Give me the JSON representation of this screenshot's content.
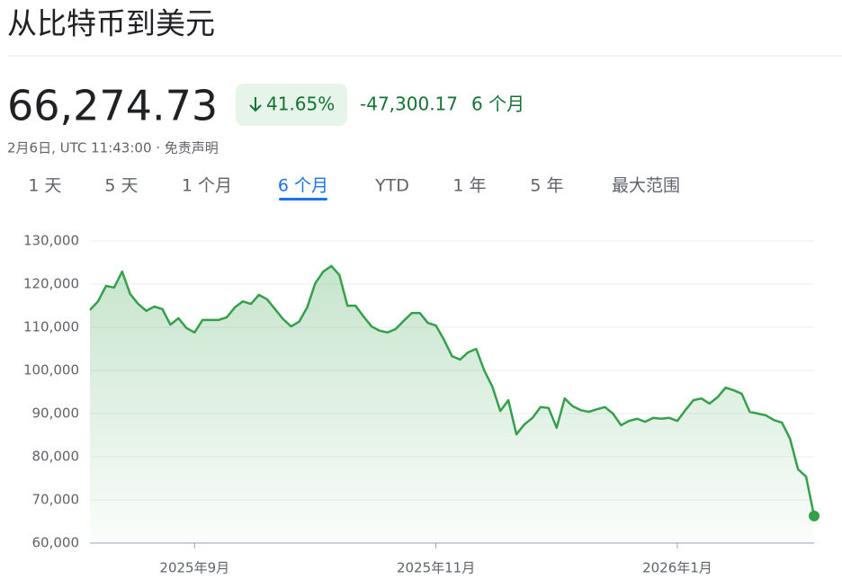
{
  "header": {
    "title": "从比特币到美元",
    "price": "66,274.73",
    "change_pct": "41.65%",
    "change_abs": "-47,300.17",
    "change_period": "6 个月",
    "timestamp": "2月6日, UTC 11:43:00 · 免责声明"
  },
  "tabs": [
    "1 天",
    "5 天",
    "1 个月",
    "6 个月",
    "YTD",
    "1 年",
    "5 年",
    "最大范围"
  ],
  "active_tab": 3,
  "chart_data": {
    "type": "line",
    "categories": [
      null,
      null,
      null,
      null,
      null,
      null,
      null,
      null,
      null,
      null,
      null,
      null,
      null,
      "2025年9月",
      null,
      null,
      null,
      null,
      null,
      null,
      null,
      null,
      null,
      null,
      null,
      null,
      null,
      null,
      null,
      null,
      null,
      null,
      null,
      null,
      null,
      null,
      null,
      null,
      null,
      null,
      null,
      null,
      null,
      "2025年11月",
      null,
      null,
      null,
      null,
      null,
      null,
      null,
      null,
      null,
      null,
      null,
      null,
      null,
      null,
      null,
      null,
      null,
      null,
      null,
      null,
      null,
      null,
      null,
      null,
      null,
      null,
      null,
      null,
      null,
      "2026年1月",
      null,
      null,
      null,
      null,
      null,
      null,
      null,
      null,
      null,
      null,
      null,
      null,
      null,
      null,
      null,
      null,
      null
    ],
    "series": [
      {
        "color": "#34a04a",
        "values": [
          114000,
          116000,
          119600,
          119200,
          122900,
          117700,
          115400,
          113800,
          114800,
          114200,
          110600,
          112100,
          109800,
          108800,
          111700,
          111700,
          111700,
          112300,
          114600,
          116000,
          115400,
          117500,
          116500,
          114200,
          111900,
          110200,
          111300,
          114600,
          120200,
          122900,
          124200,
          122100,
          115000,
          115000,
          112500,
          110200,
          109200,
          108800,
          109600,
          111500,
          113300,
          113300,
          111000,
          110400,
          107100,
          103300,
          102500,
          104200,
          105000,
          100000,
          96300,
          90600,
          93100,
          85200,
          87500,
          89000,
          91500,
          91300,
          86700,
          93500,
          91700,
          90800,
          90400,
          91000,
          91500,
          90000,
          87300,
          88300,
          88800,
          88100,
          89000,
          88800,
          89000,
          88300,
          90800,
          93100,
          93500,
          92300,
          93800,
          96000,
          95400,
          94600,
          90400,
          90000,
          89600,
          88500,
          87900,
          84200,
          77100,
          75400,
          66274.73
        ]
      }
    ],
    "ylim": [
      60000,
      130000
    ],
    "yticks": [
      {
        "value": 60000,
        "label": "60,000"
      },
      {
        "value": 70000,
        "label": "70,000"
      },
      {
        "value": 80000,
        "label": "80,000"
      },
      {
        "value": 90000,
        "label": "90,000"
      },
      {
        "value": 100000,
        "label": "100,000"
      },
      {
        "value": 110000,
        "label": "110,000"
      },
      {
        "value": 120000,
        "label": "120,000"
      },
      {
        "value": 130000,
        "label": "130,000"
      }
    ],
    "grid": true
  }
}
